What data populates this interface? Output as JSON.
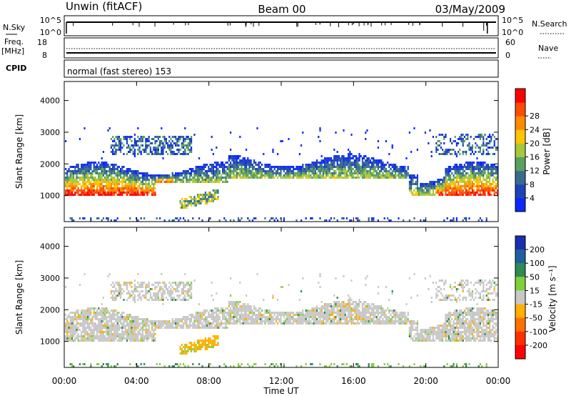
{
  "header": {
    "station": "Unwin (fitACF)",
    "beam": "Beam 00",
    "date": "03/May/2009"
  },
  "status_panels": {
    "nsky_label": "N.Sky",
    "nsky_ticks": [
      "10^5",
      "10^0"
    ],
    "nsearch_label": "N.Search",
    "freq_label": "Freq.",
    "freq_unit": "[MHz]",
    "freq_ticks": [
      "18",
      "8"
    ],
    "nave_label": "Nave",
    "nave_ticks": [
      "60",
      "0"
    ],
    "cpid_label": "CPID",
    "cpid_text": "normal (fast stereo) 153"
  },
  "chart_data": [
    {
      "type": "heatmap",
      "name": "power",
      "xlabel": "Time UT",
      "ylabel": "Slant Range [km]",
      "x_ticks": [
        "00:00",
        "04:00",
        "08:00",
        "12:00",
        "16:00",
        "20:00",
        "00:00"
      ],
      "xlim_hours": [
        0,
        24
      ],
      "ylim_km": [
        180,
        4600
      ],
      "y_ticks": [
        1000,
        2000,
        3000,
        4000
      ],
      "colorbar": {
        "label": "Power [dB]",
        "ticks": [
          4,
          8,
          12,
          16,
          20,
          24,
          28
        ],
        "colors": [
          "#0a28ff",
          "#1c43b8",
          "#3a6b8e",
          "#5aa05e",
          "#a6c83a",
          "#ffc400",
          "#ff8a00",
          "#ff4d00",
          "#ff0000"
        ]
      },
      "regions": [
        {
          "desc": "main echo band",
          "t0": 0,
          "t1": 24,
          "range_km": [
            1050,
            2300
          ],
          "peak_db": 28
        },
        {
          "desc": "upper patch",
          "t0": 2.5,
          "t1": 7,
          "range_km": [
            2300,
            3000
          ],
          "peak_db": 16
        },
        {
          "desc": "lower patch",
          "t0": 6.3,
          "t1": 8.5,
          "range_km": [
            600,
            1100
          ],
          "peak_db": 20
        },
        {
          "desc": "late-evening patch",
          "t0": 20.5,
          "t1": 24,
          "range_km": [
            1100,
            3000
          ],
          "peak_db": 24
        }
      ]
    },
    {
      "type": "heatmap",
      "name": "velocity",
      "xlabel": "Time UT",
      "ylabel": "Slant Range [km]",
      "x_ticks": [
        "00:00",
        "04:00",
        "08:00",
        "12:00",
        "16:00",
        "20:00",
        "00:00"
      ],
      "xlim_hours": [
        0,
        24
      ],
      "ylim_km": [
        180,
        4600
      ],
      "y_ticks": [
        1000,
        2000,
        3000,
        4000
      ],
      "colorbar": {
        "label": "Velocity [m s⁻¹]",
        "ticks": [
          200,
          100,
          50,
          15,
          -15,
          -50,
          -100,
          -200
        ],
        "colors": [
          "#1a2fae",
          "#1f5fa0",
          "#2f8a55",
          "#7fd03a",
          "#c8c8c8",
          "#ffb000",
          "#ff7000",
          "#ff3000",
          "#ff0000"
        ]
      },
      "regions": [
        {
          "desc": "main echo band (near zero)",
          "t0": 0,
          "t1": 24,
          "range_km": [
            1050,
            2300
          ],
          "velocity_ms": 0
        },
        {
          "desc": "lower patch (away)",
          "t0": 6.3,
          "t1": 8.5,
          "range_km": [
            600,
            1100
          ],
          "velocity_ms": -60
        }
      ]
    }
  ]
}
